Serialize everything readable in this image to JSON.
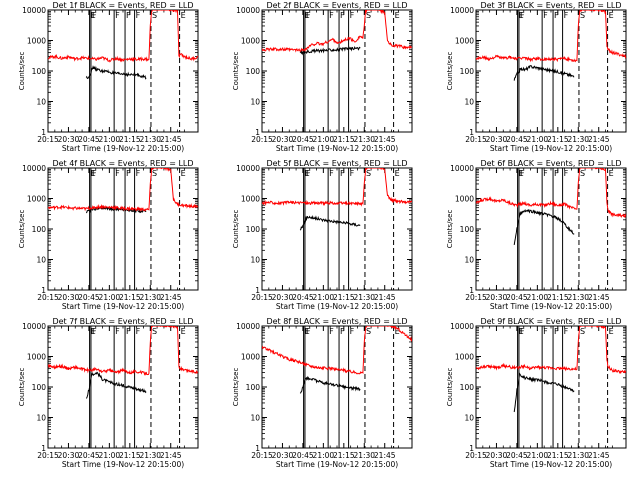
{
  "figure": {
    "x_tick_labels": [
      "20:15",
      "20:30",
      "20:45",
      "21:00",
      "21:15",
      "21:30",
      "21:45"
    ],
    "xlabel": "Start Time (19-Nov-12 20:15:00)",
    "ylabel": "Counts/sec",
    "y_tick_labels": [
      "1",
      "10",
      "100",
      "1000",
      "10000"
    ],
    "colors": {
      "events": "#000000",
      "lld": "#ff0000"
    },
    "solid_markers": [
      {
        "t": 30.5,
        "label": "E"
      },
      {
        "t": 31.5,
        "label": "F"
      },
      {
        "t": 48.5,
        "label": "F"
      },
      {
        "t": 56.5,
        "label": "F"
      },
      {
        "t": 63.5,
        "label": "F"
      }
    ],
    "dashed_markers": [
      {
        "t": 75.5,
        "label": "S"
      },
      {
        "t": 96.5,
        "label": "E"
      }
    ]
  },
  "chart_data": [
    {
      "type": "line",
      "title": "Det 1f BLACK = Events, RED = LLD",
      "xlabel": "Start Time (19-Nov-12 20:15:00)",
      "ylabel": "Counts/sec",
      "x_unit": "minutes after 20:15:00",
      "xlim": [
        0,
        110
      ],
      "ylim": [
        1,
        10000
      ],
      "yscale": "log",
      "series": [
        {
          "name": "Events",
          "color": "#000000",
          "x": [
            28,
            30,
            33,
            36,
            40,
            44,
            48,
            52,
            56,
            60,
            64,
            68,
            72
          ],
          "y": [
            60,
            65,
            130,
            110,
            100,
            95,
            85,
            80,
            80,
            75,
            75,
            70,
            60
          ]
        },
        {
          "name": "LLD",
          "color": "#ff0000",
          "x": [
            0,
            5,
            10,
            15,
            20,
            25,
            30,
            35,
            40,
            45,
            50,
            55,
            60,
            65,
            70,
            74,
            75,
            76,
            78,
            80,
            85,
            90,
            95,
            96,
            97,
            100,
            105,
            110
          ],
          "y": [
            270,
            300,
            260,
            290,
            250,
            270,
            260,
            240,
            270,
            220,
            260,
            230,
            250,
            240,
            250,
            240,
            3000,
            9000,
            11000,
            11000,
            10500,
            10000,
            9000,
            300,
            350,
            300,
            250,
            280
          ]
        }
      ]
    },
    {
      "type": "line",
      "title": "Det 2f BLACK = Events, RED = LLD",
      "xlabel": "Start Time (19-Nov-12 20:15:00)",
      "ylabel": "Counts/sec",
      "x_unit": "minutes after 20:15:00",
      "xlim": [
        0,
        110
      ],
      "ylim": [
        1,
        10000
      ],
      "yscale": "log",
      "series": [
        {
          "name": "Events",
          "color": "#000000",
          "x": [
            28,
            32,
            36,
            40,
            44,
            48,
            52,
            56,
            60,
            64,
            68,
            72
          ],
          "y": [
            400,
            420,
            450,
            460,
            470,
            480,
            500,
            500,
            520,
            540,
            550,
            560
          ]
        },
        {
          "name": "LLD",
          "color": "#ff0000",
          "x": [
            0,
            10,
            20,
            28,
            32,
            36,
            40,
            44,
            48,
            52,
            56,
            60,
            64,
            68,
            72,
            74,
            75,
            76,
            78,
            80,
            85,
            90,
            92,
            95,
            100,
            105,
            110
          ],
          "y": [
            500,
            520,
            500,
            480,
            520,
            700,
            800,
            750,
            900,
            1100,
            800,
            1000,
            1200,
            900,
            1400,
            1200,
            3000,
            9000,
            12000,
            12000,
            11000,
            8000,
            1000,
            700,
            650,
            600,
            580
          ]
        }
      ]
    },
    {
      "type": "line",
      "title": "Det 3f BLACK = Events, RED = LLD",
      "xlabel": "Start Time (19-Nov-12 20:15:00)",
      "ylabel": "Counts/sec",
      "x_unit": "minutes after 20:15:00",
      "xlim": [
        0,
        110
      ],
      "ylim": [
        1,
        10000
      ],
      "yscale": "log",
      "series": [
        {
          "name": "Events",
          "color": "#000000",
          "x": [
            28,
            30,
            33,
            36,
            40,
            44,
            48,
            52,
            56,
            60,
            64,
            68,
            72
          ],
          "y": [
            50,
            80,
            120,
            110,
            140,
            130,
            120,
            110,
            100,
            95,
            85,
            75,
            65
          ]
        },
        {
          "name": "LLD",
          "color": "#ff0000",
          "x": [
            0,
            5,
            10,
            15,
            20,
            25,
            30,
            35,
            40,
            45,
            50,
            55,
            60,
            65,
            70,
            74,
            75,
            76,
            78,
            80,
            85,
            90,
            95,
            96,
            97,
            100,
            105,
            110
          ],
          "y": [
            250,
            280,
            250,
            300,
            260,
            280,
            250,
            270,
            240,
            260,
            230,
            250,
            240,
            260,
            230,
            220,
            3000,
            9000,
            11000,
            11000,
            10500,
            10000,
            9000,
            600,
            500,
            400,
            350,
            300
          ]
        }
      ]
    },
    {
      "type": "line",
      "title": "Det 4f BLACK = Events, RED = LLD",
      "xlabel": "Start Time (19-Nov-12 20:15:00)",
      "ylabel": "Counts/sec",
      "x_unit": "minutes after 20:15:00",
      "xlim": [
        0,
        110
      ],
      "ylim": [
        1,
        10000
      ],
      "yscale": "log",
      "series": [
        {
          "name": "Events",
          "color": "#000000",
          "x": [
            28,
            32,
            36,
            40,
            44,
            48,
            52,
            56,
            60,
            64,
            68,
            72
          ],
          "y": [
            380,
            420,
            460,
            480,
            470,
            450,
            440,
            430,
            420,
            400,
            380,
            370
          ]
        },
        {
          "name": "LLD",
          "color": "#ff0000",
          "x": [
            0,
            10,
            20,
            28,
            32,
            36,
            40,
            44,
            48,
            52,
            56,
            60,
            64,
            68,
            72,
            74,
            75,
            76,
            78,
            80,
            85,
            90,
            92,
            95,
            100,
            105,
            110
          ],
          "y": [
            500,
            520,
            480,
            460,
            500,
            520,
            540,
            510,
            520,
            480,
            470,
            460,
            450,
            440,
            430,
            430,
            3000,
            9000,
            11000,
            11000,
            10000,
            9000,
            900,
            650,
            580,
            560,
            550
          ]
        }
      ]
    },
    {
      "type": "line",
      "title": "Det 5f BLACK = Events, RED = LLD",
      "xlabel": "Start Time (19-Nov-12 20:15:00)",
      "ylabel": "Counts/sec",
      "x_unit": "minutes after 20:15:00",
      "xlim": [
        0,
        110
      ],
      "ylim": [
        1,
        10000
      ],
      "yscale": "log",
      "series": [
        {
          "name": "Events",
          "color": "#000000",
          "x": [
            28,
            30,
            33,
            36,
            40,
            44,
            48,
            52,
            56,
            60,
            64,
            68,
            72
          ],
          "y": [
            100,
            120,
            250,
            240,
            220,
            200,
            190,
            180,
            170,
            160,
            150,
            140,
            130
          ]
        },
        {
          "name": "LLD",
          "color": "#ff0000",
          "x": [
            0,
            5,
            10,
            15,
            20,
            25,
            30,
            35,
            40,
            45,
            50,
            55,
            60,
            65,
            70,
            74,
            75,
            76,
            78,
            80,
            85,
            90,
            92,
            95,
            100,
            105,
            110
          ],
          "y": [
            700,
            750,
            720,
            700,
            760,
            720,
            740,
            700,
            730,
            700,
            720,
            680,
            700,
            690,
            680,
            670,
            3000,
            9000,
            12000,
            12000,
            11000,
            9000,
            1200,
            900,
            800,
            780,
            760
          ]
        }
      ]
    },
    {
      "type": "line",
      "title": "Det 6f BLACK = Events, RED = LLD",
      "xlabel": "Start Time (19-Nov-12 20:15:00)",
      "ylabel": "Counts/sec",
      "x_unit": "minutes after 20:15:00",
      "xlim": [
        0,
        110
      ],
      "ylim": [
        1,
        10000
      ],
      "yscale": "log",
      "series": [
        {
          "name": "Events",
          "color": "#000000",
          "x": [
            28,
            30,
            32,
            36,
            40,
            44,
            48,
            52,
            56,
            60,
            64,
            68,
            72
          ],
          "y": [
            30,
            100,
            300,
            400,
            380,
            350,
            320,
            300,
            260,
            220,
            160,
            100,
            70
          ]
        },
        {
          "name": "LLD",
          "color": "#ff0000",
          "x": [
            0,
            5,
            10,
            15,
            20,
            25,
            30,
            35,
            40,
            45,
            50,
            55,
            60,
            65,
            70,
            74,
            75,
            76,
            78,
            80,
            85,
            90,
            95,
            96,
            97,
            100,
            105,
            110
          ],
          "y": [
            700,
            900,
            1000,
            800,
            900,
            700,
            600,
            700,
            600,
            650,
            600,
            700,
            600,
            650,
            500,
            450,
            3000,
            9000,
            12000,
            12000,
            11000,
            10000,
            9000,
            700,
            400,
            300,
            280,
            260
          ]
        }
      ]
    },
    {
      "type": "line",
      "title": "Det 7f BLACK = Events, RED = LLD",
      "xlabel": "Start Time (19-Nov-12 20:15:00)",
      "ylabel": "Counts/sec",
      "x_unit": "minutes after 20:15:00",
      "xlim": [
        0,
        110
      ],
      "ylim": [
        1,
        10000
      ],
      "yscale": "log",
      "series": [
        {
          "name": "Events",
          "color": "#000000",
          "x": [
            28,
            30,
            32,
            36,
            40,
            44,
            48,
            52,
            56,
            60,
            64,
            68,
            72
          ],
          "y": [
            40,
            80,
            250,
            300,
            180,
            150,
            130,
            120,
            110,
            100,
            90,
            80,
            70
          ]
        },
        {
          "name": "LLD",
          "color": "#ff0000",
          "x": [
            0,
            5,
            10,
            15,
            20,
            25,
            30,
            35,
            40,
            45,
            50,
            55,
            60,
            65,
            70,
            74,
            75,
            76,
            78,
            80,
            85,
            90,
            95,
            96,
            97,
            100,
            105,
            110
          ],
          "y": [
            500,
            450,
            480,
            400,
            450,
            380,
            350,
            380,
            320,
            350,
            300,
            350,
            300,
            320,
            290,
            280,
            3000,
            9000,
            11000,
            11000,
            10500,
            10000,
            9000,
            450,
            400,
            350,
            330,
            300
          ]
        }
      ]
    },
    {
      "type": "line",
      "title": "Det 8f BLACK = Events, RED = LLD",
      "xlabel": "Start Time (19-Nov-12 20:15:00)",
      "ylabel": "Counts/sec",
      "x_unit": "minutes after 20:15:00",
      "xlim": [
        0,
        110
      ],
      "ylim": [
        1,
        10000
      ],
      "yscale": "log",
      "series": [
        {
          "name": "Events",
          "color": "#000000",
          "x": [
            28,
            30,
            32,
            36,
            40,
            44,
            48,
            52,
            56,
            60,
            64,
            68,
            72
          ],
          "y": [
            60,
            100,
            200,
            180,
            160,
            140,
            130,
            120,
            110,
            100,
            95,
            90,
            85
          ]
        },
        {
          "name": "LLD",
          "color": "#ff0000",
          "x": [
            0,
            5,
            10,
            15,
            20,
            25,
            30,
            35,
            40,
            45,
            50,
            55,
            60,
            65,
            70,
            74,
            75,
            76,
            78,
            80,
            85,
            90,
            95,
            100,
            105,
            110
          ],
          "y": [
            2000,
            1600,
            1300,
            1000,
            800,
            700,
            600,
            500,
            450,
            420,
            400,
            380,
            350,
            320,
            300,
            290,
            3000,
            9000,
            12000,
            12000,
            11000,
            11000,
            10000,
            8000,
            5000,
            3500
          ]
        }
      ]
    },
    {
      "type": "line",
      "title": "Det 9f BLACK = Events, RED = LLD",
      "xlabel": "Start Time (19-Nov-12 20:15:00)",
      "ylabel": "Counts/sec",
      "x_unit": "minutes after 20:15:00",
      "xlim": [
        0,
        110
      ],
      "ylim": [
        1,
        10000
      ],
      "yscale": "log",
      "series": [
        {
          "name": "Events",
          "color": "#000000",
          "x": [
            28,
            29,
            30,
            32,
            36,
            40,
            44,
            48,
            52,
            56,
            60,
            64,
            68,
            72
          ],
          "y": [
            15,
            30,
            80,
            250,
            200,
            180,
            170,
            160,
            140,
            130,
            120,
            100,
            90,
            75
          ]
        },
        {
          "name": "LLD",
          "color": "#ff0000",
          "x": [
            0,
            5,
            10,
            15,
            20,
            25,
            30,
            35,
            40,
            45,
            50,
            55,
            60,
            65,
            70,
            74,
            75,
            76,
            78,
            80,
            85,
            90,
            95,
            96,
            97,
            100,
            105,
            110
          ],
          "y": [
            400,
            450,
            480,
            420,
            500,
            450,
            420,
            480,
            400,
            450,
            430,
            420,
            410,
            400,
            390,
            380,
            3000,
            9000,
            11000,
            11000,
            10500,
            10000,
            9000,
            700,
            450,
            350,
            320,
            300
          ]
        }
      ]
    }
  ]
}
